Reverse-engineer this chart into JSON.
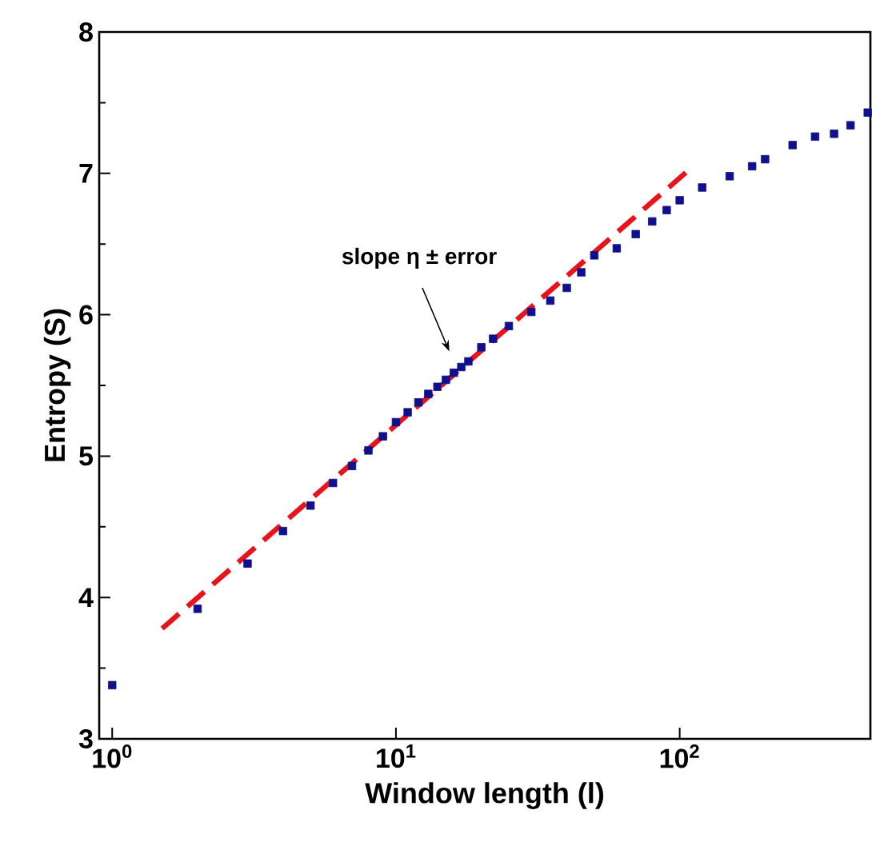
{
  "chart_data": {
    "type": "scatter",
    "xlabel": "Window length (l)",
    "ylabel": "Entropy (S)",
    "log": "x",
    "xlim": [
      0.9,
      470
    ],
    "ylim": [
      3,
      8
    ],
    "xticks": [
      {
        "value": 1,
        "label": "10$^{0}$"
      },
      {
        "value": 10,
        "label": "10$^{1}$"
      },
      {
        "value": 100,
        "label": "10$^{2}$"
      }
    ],
    "yticks": [
      3,
      4,
      5,
      6,
      7,
      8
    ],
    "marker": "square",
    "annotations": [
      "slope η ± error"
    ],
    "series": [
      {
        "color": "#10108c",
        "x": [
          1,
          2,
          3,
          4,
          5,
          6,
          7,
          8,
          9,
          10,
          11,
          12,
          13,
          14,
          15,
          16,
          17,
          18,
          20,
          22,
          25,
          30,
          35,
          40,
          45,
          50,
          60,
          70,
          80,
          90,
          100,
          120,
          150,
          180,
          200,
          250,
          300,
          350,
          400,
          460
        ],
        "values": [
          3.38,
          3.92,
          4.24,
          4.47,
          4.65,
          4.81,
          4.93,
          5.04,
          5.14,
          5.24,
          5.31,
          5.38,
          5.44,
          5.49,
          5.54,
          5.59,
          5.63,
          5.67,
          5.77,
          5.83,
          5.92,
          6.02,
          6.1,
          6.19,
          6.3,
          6.42,
          6.47,
          6.57,
          6.66,
          6.74,
          6.81,
          6.9,
          6.98,
          7.05,
          7.1,
          7.2,
          7.26,
          7.28,
          7.34,
          7.43
        ]
      },
      {
        "type": "line",
        "marker": "none",
        "line_style": "dashed",
        "color": "#e8141c",
        "x": [
          1.5,
          110
        ],
        "values": [
          3.78,
          7.04
        ]
      }
    ]
  }
}
